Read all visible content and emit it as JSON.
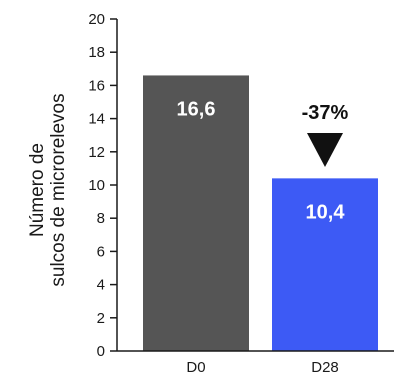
{
  "chart_data": {
    "type": "bar",
    "categories": [
      "D0",
      "D28"
    ],
    "values": [
      16.6,
      10.4
    ],
    "data_labels": [
      "16,6",
      "10,4"
    ],
    "bar_colors": [
      "#555555",
      "#3d5af5"
    ],
    "ylabel_lines": [
      "Número de",
      "sulcos de microrelevos"
    ],
    "xlabel": "",
    "title": "",
    "ylim": [
      0,
      20
    ],
    "y_ticks": [
      0,
      2,
      4,
      6,
      8,
      10,
      12,
      14,
      16,
      18,
      20
    ],
    "grid": false,
    "annotation": {
      "text": "-37%",
      "marker": "down-triangle",
      "target_category": "D28",
      "color": "#111111"
    }
  }
}
